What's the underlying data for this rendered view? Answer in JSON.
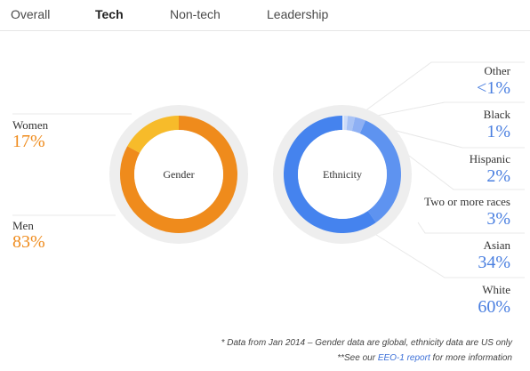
{
  "tabs": [
    {
      "label": "Overall",
      "active": false
    },
    {
      "label": "Tech",
      "active": true
    },
    {
      "label": "Non-tech",
      "active": false
    },
    {
      "label": "Leadership",
      "active": false
    }
  ],
  "gender": {
    "center_label": "Gender",
    "items": [
      {
        "label": "Women",
        "value": "17%"
      },
      {
        "label": "Men",
        "value": "83%"
      }
    ]
  },
  "ethnicity": {
    "center_label": "Ethnicity",
    "items": [
      {
        "label": "Other",
        "value": "<1%"
      },
      {
        "label": "Black",
        "value": "1%"
      },
      {
        "label": "Hispanic",
        "value": "2%"
      },
      {
        "label": "Two or more races",
        "value": "3%"
      },
      {
        "label": "Asian",
        "value": "34%"
      },
      {
        "label": "White",
        "value": "60%"
      }
    ]
  },
  "footnotes": {
    "line1": "* Data from Jan 2014 – Gender data are global, ethnicity data are US only",
    "line2_prefix": "**See our ",
    "line2_link": "EEO-1 report",
    "line2_suffix": " for more information"
  },
  "chart_data": [
    {
      "type": "pie",
      "title": "Gender",
      "categories": [
        "Women",
        "Men"
      ],
      "values": [
        17,
        83
      ],
      "colors": [
        "#f7bb2a",
        "#ef8b1c"
      ]
    },
    {
      "type": "pie",
      "title": "Ethnicity",
      "categories": [
        "Other",
        "Black",
        "Hispanic",
        "Two or more races",
        "Asian",
        "White"
      ],
      "values": [
        0.5,
        1,
        2,
        3,
        34,
        60
      ],
      "colors": [
        "#e3ecfb",
        "#cddcf8",
        "#a9c3f5",
        "#8eb0f4",
        "#5e93f0",
        "#4583ee"
      ]
    }
  ]
}
